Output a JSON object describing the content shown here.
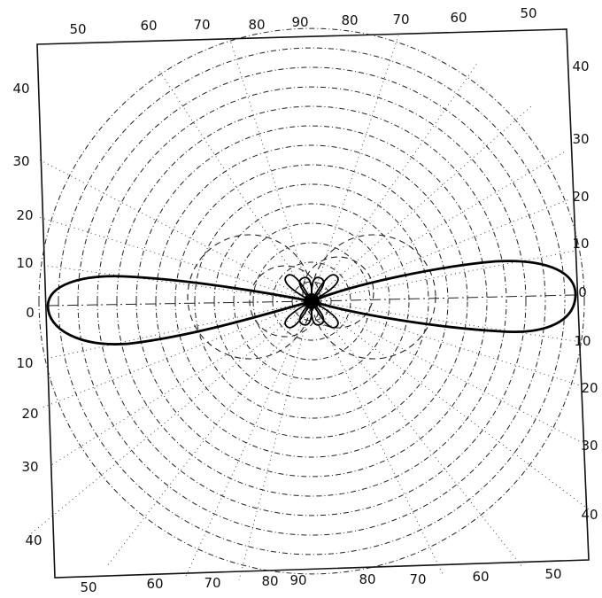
{
  "top_labels": [
    "50",
    "60",
    "70",
    "80",
    "90",
    "80",
    "70",
    "60",
    "50"
  ],
  "bottom_labels": [
    "50",
    "60",
    "70",
    "80",
    "90",
    "80",
    "70",
    "60",
    "50"
  ],
  "left_labels": [
    "40",
    "30",
    "20",
    "10",
    "0",
    "10",
    "20",
    "30",
    "40"
  ],
  "right_labels": [
    "40",
    "30",
    "20",
    "10",
    "0",
    "10",
    "20",
    "30",
    "40"
  ]
}
